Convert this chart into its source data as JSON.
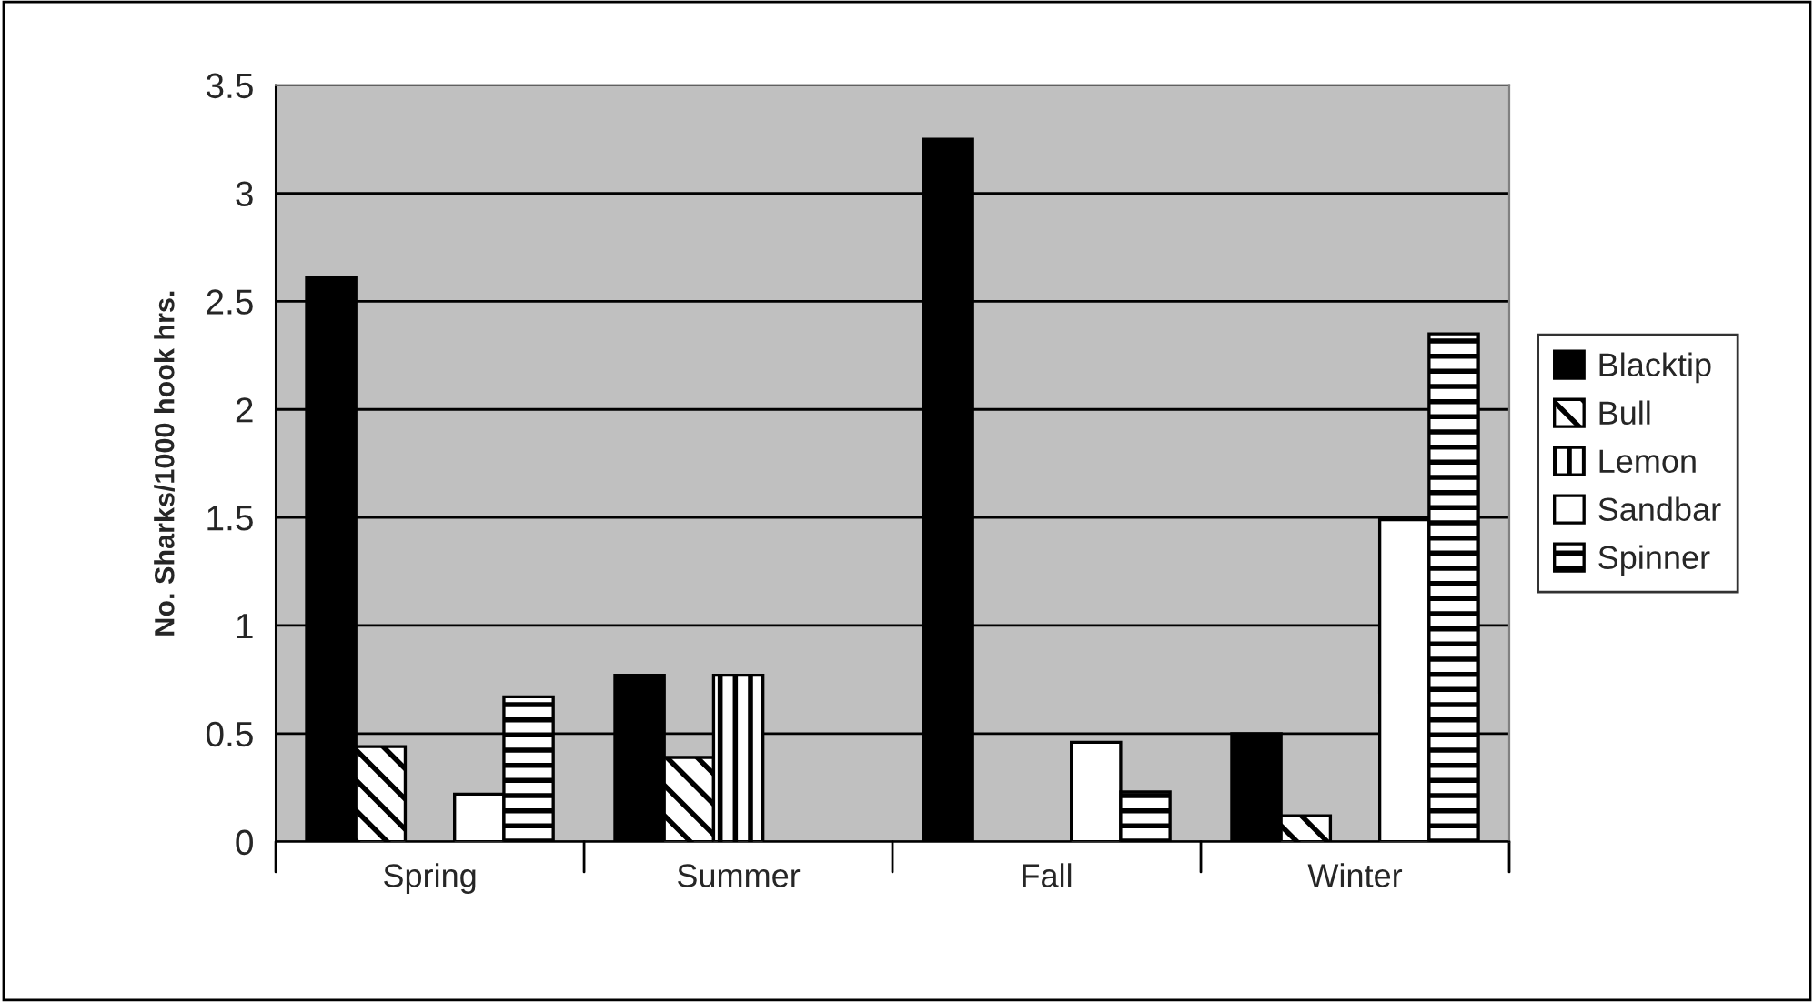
{
  "chart_data": {
    "type": "bar",
    "ylabel": "No. Sharks/1000 hook hrs.",
    "categories": [
      "Spring",
      "Summer",
      "Fall",
      "Winter"
    ],
    "series": [
      {
        "name": "Blacktip",
        "color": "#000000",
        "values": [
          2.61,
          0.77,
          3.25,
          0.5
        ]
      },
      {
        "name": "Bull",
        "color": "#000000",
        "values": [
          0.44,
          0.39,
          0,
          0.12
        ]
      },
      {
        "name": "Lemon",
        "color": "#000000",
        "values": [
          0,
          0.77,
          0,
          0
        ]
      },
      {
        "name": "Sandbar",
        "color": "#ffffff",
        "values": [
          0.22,
          0,
          0.46,
          1.49
        ]
      },
      {
        "name": "Spinner",
        "color": "#000000",
        "values": [
          0.67,
          0,
          0.23,
          2.35
        ]
      }
    ],
    "ylim": [
      0,
      3.5
    ],
    "yticks": [
      0,
      0.5,
      1,
      1.5,
      2,
      2.5,
      3,
      3.5
    ],
    "grid": "y",
    "legend": "right"
  }
}
